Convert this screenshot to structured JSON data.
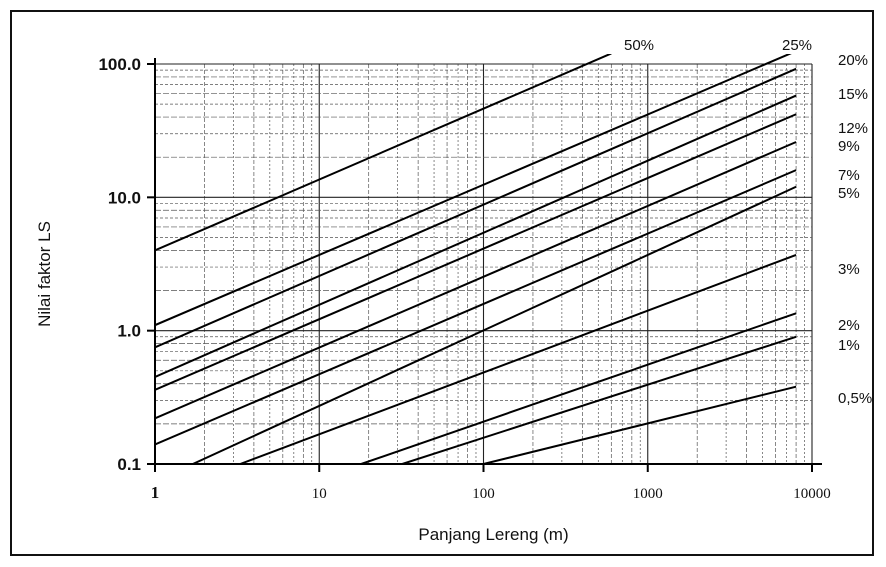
{
  "chart_data": {
    "type": "line",
    "title": "",
    "xlabel": "Panjang Lereng (m)",
    "ylabel": "Nilai faktor LS",
    "x_scale": "log",
    "y_scale": "log",
    "xlim": [
      1,
      10000
    ],
    "ylim": [
      0.1,
      100
    ],
    "grid": true,
    "legend": "none",
    "x_ticks": [
      "1",
      "10",
      "100",
      "1000",
      "10000"
    ],
    "y_ticks": [
      "0.1",
      "1.0",
      "10.0",
      "100.0"
    ],
    "series": [
      {
        "name": "50%",
        "points": [
          [
            1,
            4.0
          ],
          [
            600,
            120
          ]
        ]
      },
      {
        "name": "25%",
        "points": [
          [
            1,
            1.1
          ],
          [
            8000,
            125
          ]
        ]
      },
      {
        "name": "20%",
        "points": [
          [
            1,
            0.75
          ],
          [
            8000,
            92
          ]
        ]
      },
      {
        "name": "15%",
        "points": [
          [
            1,
            0.45
          ],
          [
            8000,
            58
          ]
        ]
      },
      {
        "name": "12%",
        "points": [
          [
            1,
            0.36
          ],
          [
            8000,
            42
          ]
        ]
      },
      {
        "name": "9%",
        "points": [
          [
            1,
            0.22
          ],
          [
            8000,
            26
          ]
        ]
      },
      {
        "name": "7%",
        "points": [
          [
            1,
            0.14
          ],
          [
            8000,
            16
          ]
        ]
      },
      {
        "name": "5%",
        "points": [
          [
            1.7,
            0.1
          ],
          [
            8000,
            12
          ]
        ]
      },
      {
        "name": "3%",
        "points": [
          [
            3.3,
            0.1
          ],
          [
            8000,
            3.7
          ]
        ]
      },
      {
        "name": "2%",
        "points": [
          [
            18,
            0.1
          ],
          [
            8000,
            1.35
          ]
        ]
      },
      {
        "name": "1%",
        "points": [
          [
            32,
            0.1
          ],
          [
            8000,
            0.9
          ]
        ]
      },
      {
        "name": "0,5%",
        "points": [
          [
            100,
            0.1
          ],
          [
            8000,
            0.38
          ]
        ]
      }
    ]
  }
}
